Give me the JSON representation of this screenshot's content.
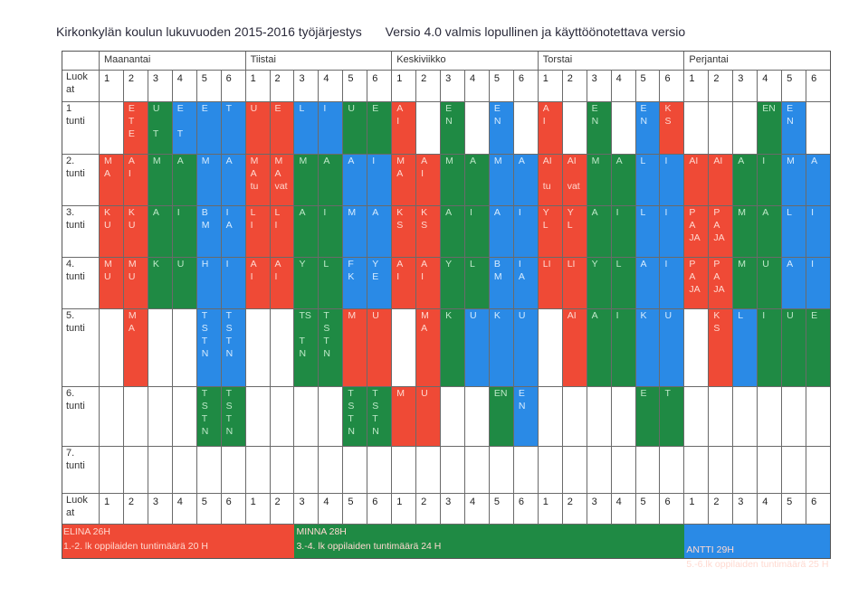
{
  "title": {
    "main": "Kirkonkylän koulun lukuvuoden 2015-2016 työjärjestys",
    "version": "Versio 4.0 valmis lopullinen ja käyttöönotettava versio"
  },
  "colors": {
    "red": "#ef4a36",
    "green": "#1f8a44",
    "blue": "#2a8ae6"
  },
  "days": [
    "Maanantai",
    "Tiistai",
    "Keskiviikko",
    "Torstai",
    "Perjantai"
  ],
  "class_header_label": [
    "Luok",
    "at"
  ],
  "class_numbers": [
    "1",
    "2",
    "3",
    "4",
    "5",
    "6"
  ],
  "periods": [
    {
      "label": [
        "1",
        "tunti"
      ],
      "cells": [
        {
          "c": "white",
          "t": []
        },
        {
          "c": "red",
          "t": [
            "E",
            "T",
            "E"
          ]
        },
        {
          "c": "green",
          "t": [
            "U",
            "",
            "T"
          ]
        },
        {
          "c": "blue",
          "t": [
            "E",
            "",
            "T"
          ]
        },
        {
          "c": "blue",
          "t": [
            "E"
          ]
        },
        {
          "c": "blue",
          "t": [
            "T"
          ]
        },
        {
          "c": "red",
          "t": [
            "U"
          ]
        },
        {
          "c": "red",
          "t": [
            "E"
          ]
        },
        {
          "c": "blue",
          "t": [
            "L"
          ]
        },
        {
          "c": "blue",
          "t": [
            "I"
          ]
        },
        {
          "c": "green",
          "t": [
            "U"
          ]
        },
        {
          "c": "green",
          "t": [
            "E"
          ]
        },
        {
          "c": "red",
          "t": [
            "A",
            "I"
          ]
        },
        {
          "c": "white",
          "t": []
        },
        {
          "c": "green",
          "t": [
            "E",
            "N"
          ]
        },
        {
          "c": "white",
          "t": []
        },
        {
          "c": "blue",
          "t": [
            "E",
            "N"
          ]
        },
        {
          "c": "white",
          "t": []
        },
        {
          "c": "red",
          "t": [
            "A",
            "I"
          ]
        },
        {
          "c": "white",
          "t": []
        },
        {
          "c": "green",
          "t": [
            "E",
            "N"
          ]
        },
        {
          "c": "white",
          "t": []
        },
        {
          "c": "blue",
          "t": [
            "E",
            "N"
          ]
        },
        {
          "c": "red",
          "t": [
            "K",
            "S"
          ]
        },
        {
          "c": "white",
          "t": []
        },
        {
          "c": "white",
          "t": []
        },
        {
          "c": "white",
          "t": []
        },
        {
          "c": "green",
          "t": [
            "EN"
          ]
        },
        {
          "c": "blue",
          "t": [
            "E",
            "N"
          ]
        },
        {
          "c": "white",
          "t": []
        }
      ]
    },
    {
      "label": [
        "2.",
        "tunti"
      ],
      "cells": [
        {
          "c": "red",
          "t": [
            "M",
            "A"
          ]
        },
        {
          "c": "red",
          "t": [
            "A",
            "I"
          ]
        },
        {
          "c": "green",
          "t": [
            "M"
          ]
        },
        {
          "c": "green",
          "t": [
            "A"
          ]
        },
        {
          "c": "blue",
          "t": [
            "M"
          ]
        },
        {
          "c": "blue",
          "t": [
            "A"
          ]
        },
        {
          "c": "red",
          "t": [
            "M",
            "A",
            "tu"
          ]
        },
        {
          "c": "red",
          "t": [
            "M",
            "A",
            "vat"
          ]
        },
        {
          "c": "green",
          "t": [
            "M"
          ]
        },
        {
          "c": "green",
          "t": [
            "A"
          ]
        },
        {
          "c": "blue",
          "t": [
            "A"
          ]
        },
        {
          "c": "blue",
          "t": [
            "I"
          ]
        },
        {
          "c": "red",
          "t": [
            "M",
            "A"
          ]
        },
        {
          "c": "red",
          "t": [
            "A",
            "I"
          ]
        },
        {
          "c": "green",
          "t": [
            "M"
          ]
        },
        {
          "c": "green",
          "t": [
            "A"
          ]
        },
        {
          "c": "blue",
          "t": [
            "M"
          ]
        },
        {
          "c": "blue",
          "t": [
            "A"
          ]
        },
        {
          "c": "red",
          "t": [
            "AI",
            "",
            "tu"
          ]
        },
        {
          "c": "red",
          "t": [
            "AI",
            "",
            "vat"
          ]
        },
        {
          "c": "green",
          "t": [
            "M"
          ]
        },
        {
          "c": "green",
          "t": [
            "A"
          ]
        },
        {
          "c": "blue",
          "t": [
            "L"
          ]
        },
        {
          "c": "blue",
          "t": [
            "I"
          ]
        },
        {
          "c": "red",
          "t": [
            "AI"
          ]
        },
        {
          "c": "red",
          "t": [
            "AI"
          ]
        },
        {
          "c": "green",
          "t": [
            "A"
          ]
        },
        {
          "c": "green",
          "t": [
            "I"
          ]
        },
        {
          "c": "blue",
          "t": [
            "M"
          ]
        },
        {
          "c": "blue",
          "t": [
            "A"
          ]
        }
      ]
    },
    {
      "label": [
        "3.",
        "tunti"
      ],
      "cells": [
        {
          "c": "red",
          "t": [
            "K",
            "U"
          ]
        },
        {
          "c": "red",
          "t": [
            "K",
            "U"
          ]
        },
        {
          "c": "green",
          "t": [
            "A"
          ]
        },
        {
          "c": "green",
          "t": [
            "I"
          ]
        },
        {
          "c": "blue",
          "t": [
            "B",
            "M"
          ]
        },
        {
          "c": "blue",
          "t": [
            "I",
            "A"
          ]
        },
        {
          "c": "red",
          "t": [
            "L",
            "I"
          ]
        },
        {
          "c": "red",
          "t": [
            "L",
            "I"
          ]
        },
        {
          "c": "green",
          "t": [
            "A"
          ]
        },
        {
          "c": "green",
          "t": [
            "I"
          ]
        },
        {
          "c": "blue",
          "t": [
            "M"
          ]
        },
        {
          "c": "blue",
          "t": [
            "A"
          ]
        },
        {
          "c": "red",
          "t": [
            "K",
            "S"
          ]
        },
        {
          "c": "red",
          "t": [
            "K",
            "S"
          ]
        },
        {
          "c": "green",
          "t": [
            "A"
          ]
        },
        {
          "c": "green",
          "t": [
            "I"
          ]
        },
        {
          "c": "blue",
          "t": [
            "A"
          ]
        },
        {
          "c": "blue",
          "t": [
            "I"
          ]
        },
        {
          "c": "red",
          "t": [
            "Y",
            "L"
          ]
        },
        {
          "c": "red",
          "t": [
            "Y",
            "L"
          ]
        },
        {
          "c": "green",
          "t": [
            "A"
          ]
        },
        {
          "c": "green",
          "t": [
            "I"
          ]
        },
        {
          "c": "blue",
          "t": [
            "L"
          ]
        },
        {
          "c": "blue",
          "t": [
            "I"
          ]
        },
        {
          "c": "red",
          "t": [
            "P",
            "A",
            "JA"
          ]
        },
        {
          "c": "red",
          "t": [
            "P",
            "A",
            "JA"
          ]
        },
        {
          "c": "green",
          "t": [
            "M"
          ]
        },
        {
          "c": "green",
          "t": [
            "A"
          ]
        },
        {
          "c": "blue",
          "t": [
            "L"
          ]
        },
        {
          "c": "blue",
          "t": [
            "I"
          ]
        }
      ]
    },
    {
      "label": [
        "4.",
        "tunti"
      ],
      "cells": [
        {
          "c": "red",
          "t": [
            "M",
            "U"
          ]
        },
        {
          "c": "red",
          "t": [
            "M",
            "U"
          ]
        },
        {
          "c": "green",
          "t": [
            "K"
          ]
        },
        {
          "c": "green",
          "t": [
            "U"
          ]
        },
        {
          "c": "blue",
          "t": [
            "H"
          ]
        },
        {
          "c": "blue",
          "t": [
            "I"
          ]
        },
        {
          "c": "red",
          "t": [
            "A",
            "I"
          ]
        },
        {
          "c": "red",
          "t": [
            "A",
            "I"
          ]
        },
        {
          "c": "green",
          "t": [
            "Y"
          ]
        },
        {
          "c": "green",
          "t": [
            "L"
          ]
        },
        {
          "c": "blue",
          "t": [
            "F",
            "K"
          ]
        },
        {
          "c": "blue",
          "t": [
            "Y",
            "E"
          ]
        },
        {
          "c": "red",
          "t": [
            "A",
            "I"
          ]
        },
        {
          "c": "red",
          "t": [
            "A",
            "I"
          ]
        },
        {
          "c": "green",
          "t": [
            "Y"
          ]
        },
        {
          "c": "green",
          "t": [
            "L"
          ]
        },
        {
          "c": "blue",
          "t": [
            "B",
            "M"
          ]
        },
        {
          "c": "blue",
          "t": [
            "I",
            "A"
          ]
        },
        {
          "c": "red",
          "t": [
            "LI"
          ]
        },
        {
          "c": "red",
          "t": [
            "LI"
          ]
        },
        {
          "c": "green",
          "t": [
            "Y"
          ]
        },
        {
          "c": "green",
          "t": [
            "L"
          ]
        },
        {
          "c": "blue",
          "t": [
            "A"
          ]
        },
        {
          "c": "blue",
          "t": [
            "I"
          ]
        },
        {
          "c": "red",
          "t": [
            "P",
            "A",
            "JA"
          ]
        },
        {
          "c": "red",
          "t": [
            "P",
            "A",
            "JA"
          ]
        },
        {
          "c": "green",
          "t": [
            "M"
          ]
        },
        {
          "c": "green",
          "t": [
            "U"
          ]
        },
        {
          "c": "blue",
          "t": [
            "A"
          ]
        },
        {
          "c": "blue",
          "t": [
            "I"
          ]
        }
      ]
    },
    {
      "label": [
        "5.",
        "tunti"
      ],
      "cells": [
        {
          "c": "white",
          "t": []
        },
        {
          "c": "red",
          "t": [
            "M",
            "A"
          ]
        },
        {
          "c": "white",
          "t": []
        },
        {
          "c": "white",
          "t": []
        },
        {
          "c": "blue",
          "t": [
            "T",
            "S",
            "T",
            "N"
          ]
        },
        {
          "c": "blue",
          "t": [
            "T",
            "S",
            "T",
            "N"
          ]
        },
        {
          "c": "white",
          "t": []
        },
        {
          "c": "white",
          "t": []
        },
        {
          "c": "green",
          "t": [
            "TS",
            "",
            "T",
            "N"
          ]
        },
        {
          "c": "green",
          "t": [
            "T",
            "S",
            "T",
            "N"
          ]
        },
        {
          "c": "red",
          "t": [
            "M"
          ]
        },
        {
          "c": "red",
          "t": [
            "U"
          ]
        },
        {
          "c": "white",
          "t": []
        },
        {
          "c": "red",
          "t": [
            "M",
            "A"
          ]
        },
        {
          "c": "green",
          "t": [
            "K"
          ]
        },
        {
          "c": "blue",
          "t": [
            "U"
          ]
        },
        {
          "c": "blue",
          "t": [
            "K"
          ]
        },
        {
          "c": "blue",
          "t": [
            "U"
          ]
        },
        {
          "c": "white",
          "t": []
        },
        {
          "c": "red",
          "t": [
            "AI"
          ]
        },
        {
          "c": "green",
          "t": [
            "A"
          ]
        },
        {
          "c": "green",
          "t": [
            "I"
          ]
        },
        {
          "c": "blue",
          "t": [
            "K"
          ]
        },
        {
          "c": "blue",
          "t": [
            "U"
          ]
        },
        {
          "c": "white",
          "t": []
        },
        {
          "c": "red",
          "t": [
            "K",
            "S"
          ]
        },
        {
          "c": "blue",
          "t": [
            "L"
          ]
        },
        {
          "c": "green",
          "t": [
            "I"
          ]
        },
        {
          "c": "green",
          "t": [
            "U"
          ]
        },
        {
          "c": "green",
          "t": [
            "E"
          ]
        }
      ]
    },
    {
      "label": [
        "6.",
        "tunti"
      ],
      "cells": [
        {
          "c": "white",
          "t": []
        },
        {
          "c": "white",
          "t": []
        },
        {
          "c": "white",
          "t": []
        },
        {
          "c": "white",
          "t": []
        },
        {
          "c": "green",
          "t": [
            "T",
            "S",
            "T",
            "N"
          ]
        },
        {
          "c": "green",
          "t": [
            "T",
            "S",
            "T",
            "N"
          ]
        },
        {
          "c": "white",
          "t": []
        },
        {
          "c": "white",
          "t": []
        },
        {
          "c": "white",
          "t": []
        },
        {
          "c": "white",
          "t": []
        },
        {
          "c": "green",
          "t": [
            "T",
            "S",
            "T",
            "N"
          ]
        },
        {
          "c": "green",
          "t": [
            "T",
            "S",
            "T",
            "N"
          ]
        },
        {
          "c": "red",
          "t": [
            "M"
          ]
        },
        {
          "c": "red",
          "t": [
            "U"
          ]
        },
        {
          "c": "white",
          "t": []
        },
        {
          "c": "white",
          "t": []
        },
        {
          "c": "green",
          "t": [
            "EN"
          ]
        },
        {
          "c": "blue",
          "t": [
            "E",
            "N"
          ]
        },
        {
          "c": "white",
          "t": []
        },
        {
          "c": "white",
          "t": []
        },
        {
          "c": "white",
          "t": []
        },
        {
          "c": "white",
          "t": []
        },
        {
          "c": "green",
          "t": [
            "E"
          ]
        },
        {
          "c": "green",
          "t": [
            "T"
          ]
        },
        {
          "c": "white",
          "t": []
        },
        {
          "c": "white",
          "t": []
        },
        {
          "c": "white",
          "t": []
        },
        {
          "c": "white",
          "t": []
        },
        {
          "c": "white",
          "t": []
        },
        {
          "c": "white",
          "t": []
        }
      ]
    },
    {
      "label": [
        "7.",
        "tunti"
      ],
      "cells": [
        {
          "c": "white",
          "t": []
        },
        {
          "c": "white",
          "t": []
        },
        {
          "c": "white",
          "t": []
        },
        {
          "c": "white",
          "t": []
        },
        {
          "c": "white",
          "t": []
        },
        {
          "c": "white",
          "t": []
        },
        {
          "c": "white",
          "t": []
        },
        {
          "c": "white",
          "t": []
        },
        {
          "c": "white",
          "t": []
        },
        {
          "c": "white",
          "t": []
        },
        {
          "c": "white",
          "t": []
        },
        {
          "c": "white",
          "t": []
        },
        {
          "c": "white",
          "t": []
        },
        {
          "c": "white",
          "t": []
        },
        {
          "c": "white",
          "t": []
        },
        {
          "c": "white",
          "t": []
        },
        {
          "c": "white",
          "t": []
        },
        {
          "c": "white",
          "t": []
        },
        {
          "c": "white",
          "t": []
        },
        {
          "c": "white",
          "t": []
        },
        {
          "c": "white",
          "t": []
        },
        {
          "c": "white",
          "t": []
        },
        {
          "c": "white",
          "t": []
        },
        {
          "c": "white",
          "t": []
        },
        {
          "c": "white",
          "t": []
        },
        {
          "c": "white",
          "t": []
        },
        {
          "c": "white",
          "t": []
        },
        {
          "c": "white",
          "t": []
        },
        {
          "c": "white",
          "t": []
        },
        {
          "c": "white",
          "t": []
        }
      ]
    }
  ],
  "legend": [
    {
      "color": "red",
      "lines": [
        "ELINA  26H",
        "1.-2. lk oppilaiden tuntimäärä 20 H"
      ]
    },
    {
      "color": "green",
      "lines": [
        "MINNA  28H",
        "3.-4. lk oppilaiden tuntimäärä 24 H"
      ]
    },
    {
      "color": "blue",
      "lines": [
        "ANTTI  29H",
        "5.-6.lk oppilaiden tuntimäärä 25 H"
      ]
    }
  ]
}
